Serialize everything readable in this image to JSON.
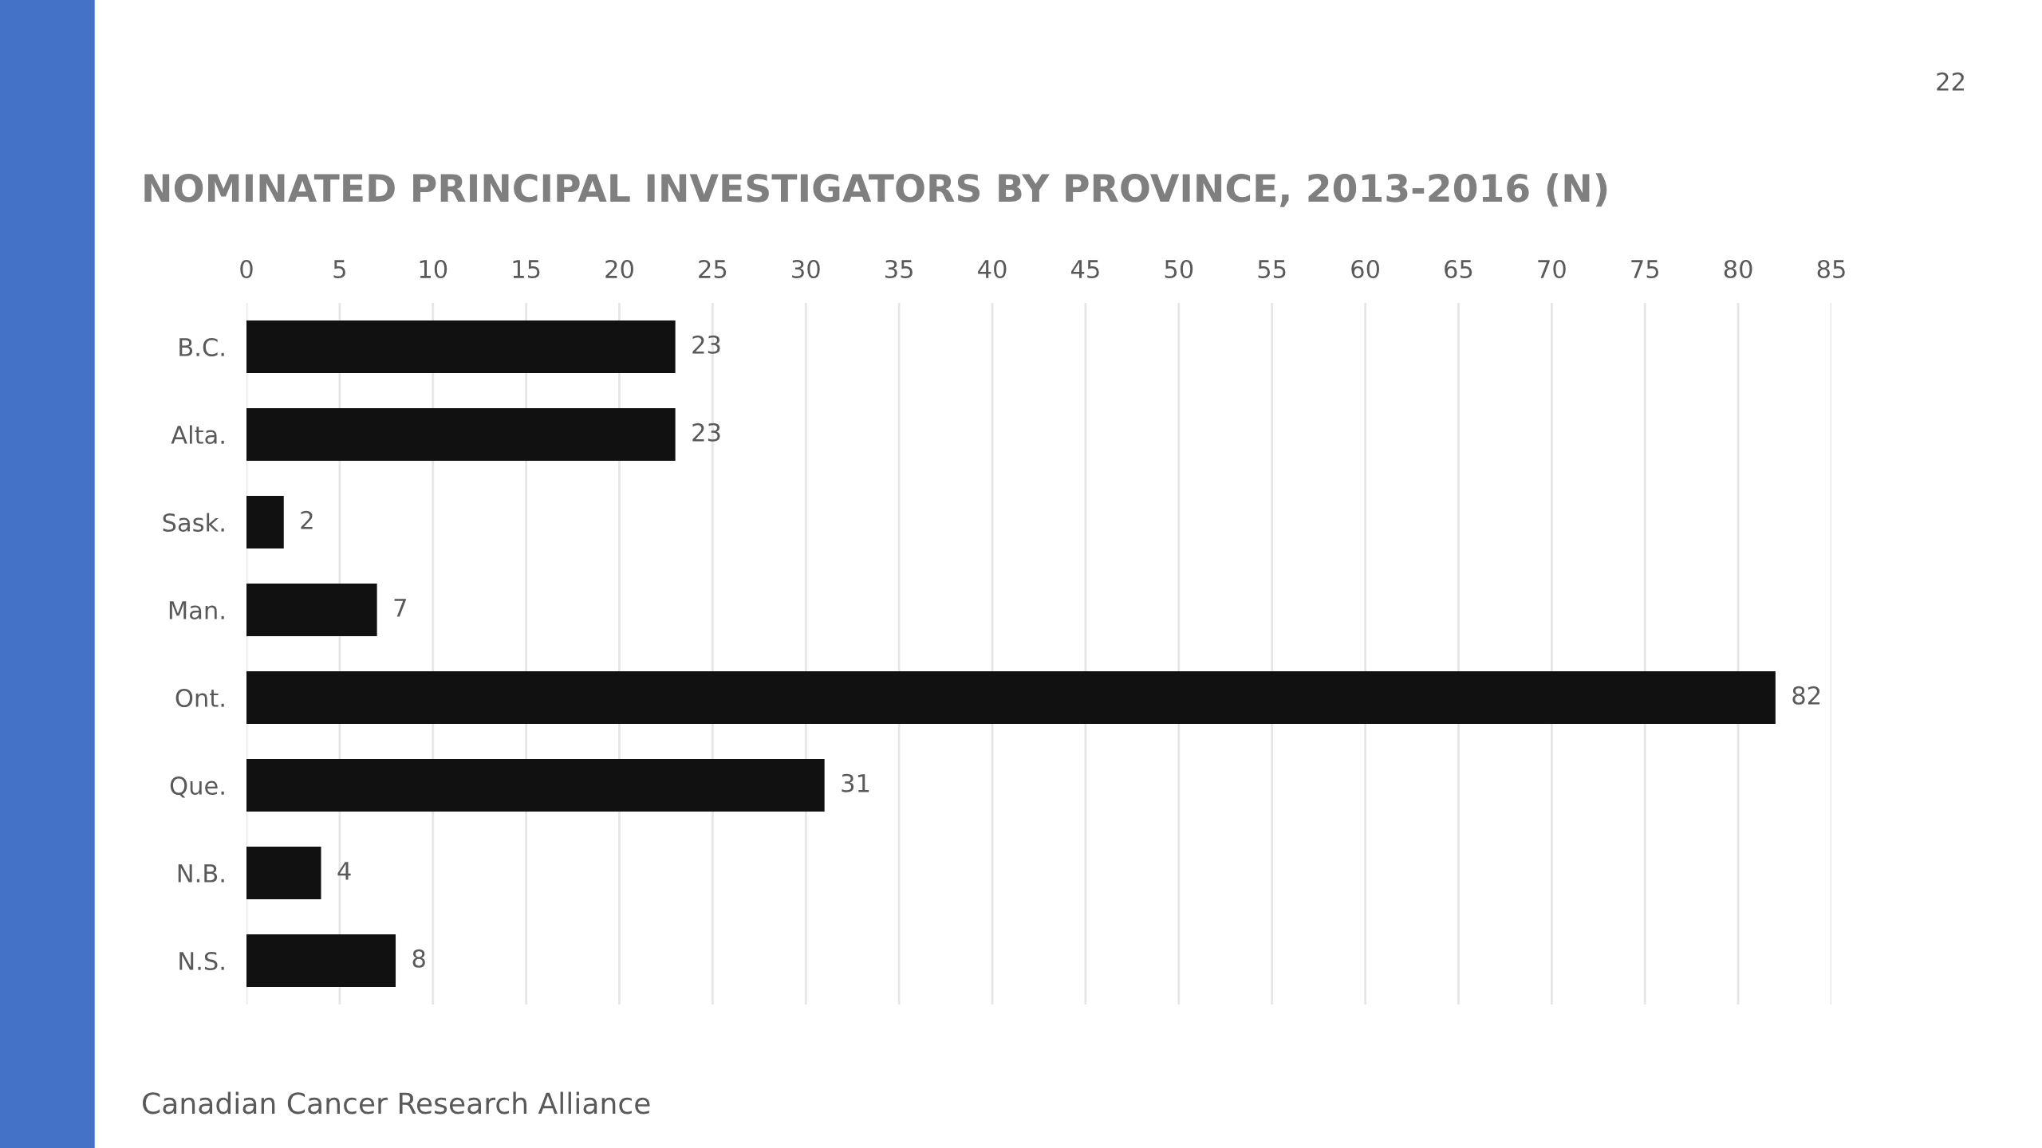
{
  "chart_data": {
    "type": "bar",
    "orientation": "horizontal",
    "title": "NOMINATED PRINCIPAL INVESTIGATORS BY PROVINCE, 2013-2016 (N)",
    "categories": [
      "B.C.",
      "Alta.",
      "Sask.",
      "Man.",
      "Ont.",
      "Que.",
      "N.B.",
      "N.S."
    ],
    "values": [
      23,
      23,
      2,
      7,
      82,
      31,
      4,
      8
    ],
    "color": "#111111",
    "xlim": [
      0,
      85
    ],
    "xticks": [
      0,
      5,
      10,
      15,
      20,
      25,
      30,
      35,
      40,
      45,
      50,
      55,
      60,
      65,
      70,
      75,
      80,
      85
    ],
    "grid": "x",
    "data_labels": true,
    "annotations": [
      "22",
      "Canadian Cancer Research Alliance"
    ]
  }
}
